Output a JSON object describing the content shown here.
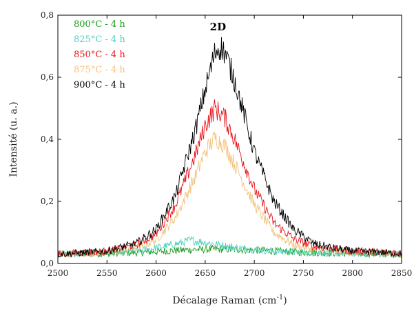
{
  "chart_data": {
    "type": "line",
    "title": "",
    "xlabel": "Décalage Raman (cm",
    "xlabel_sup": "-1",
    "xlabel_close": ")",
    "ylabel": "Intensité (u. a.)",
    "xlim": [
      2500,
      2850
    ],
    "ylim": [
      0,
      0.8
    ],
    "x_ticks": [
      2500,
      2550,
      2600,
      2650,
      2700,
      2750,
      2800,
      2850
    ],
    "y_ticks": [
      0.0,
      0.2,
      0.4,
      0.6,
      0.8
    ],
    "x_tick_labels": [
      "2500",
      "2550",
      "2600",
      "2650",
      "2700",
      "2750",
      "2800",
      "2850"
    ],
    "y_tick_labels": [
      "0,0",
      "0,2",
      "0,4",
      "0,6",
      "0,8"
    ],
    "legend_position": "top-left",
    "grid": false,
    "annotations": [
      {
        "text": "2D",
        "x": 2663,
        "y": 0.76
      }
    ],
    "series": [
      {
        "name": "800°C - 4 h",
        "color": "#1a9a1a",
        "x": [
          2500,
          2550,
          2600,
          2620,
          2640,
          2660,
          2680,
          2700,
          2750,
          2800,
          2850
        ],
        "y": [
          0.03,
          0.032,
          0.038,
          0.042,
          0.045,
          0.046,
          0.045,
          0.043,
          0.036,
          0.032,
          0.03
        ]
      },
      {
        "name": "825°C - 4 h",
        "color": "#4fd0c0",
        "x": [
          2500,
          2550,
          2580,
          2600,
          2620,
          2635,
          2650,
          2665,
          2680,
          2700,
          2720,
          2750,
          2800,
          2850
        ],
        "y": [
          0.03,
          0.033,
          0.04,
          0.05,
          0.062,
          0.075,
          0.068,
          0.06,
          0.052,
          0.045,
          0.04,
          0.035,
          0.032,
          0.03
        ]
      },
      {
        "name": "850°C - 4 h",
        "color": "#e8141c",
        "x": [
          2500,
          2550,
          2580,
          2600,
          2620,
          2640,
          2650,
          2660,
          2670,
          2680,
          2700,
          2720,
          2740,
          2760,
          2800,
          2850
        ],
        "y": [
          0.03,
          0.04,
          0.06,
          0.095,
          0.19,
          0.35,
          0.445,
          0.5,
          0.47,
          0.4,
          0.24,
          0.13,
          0.08,
          0.055,
          0.04,
          0.035
        ]
      },
      {
        "name": "875°C - 4 h",
        "color": "#f2c27c",
        "x": [
          2500,
          2550,
          2580,
          2600,
          2620,
          2640,
          2650,
          2660,
          2670,
          2680,
          2700,
          2720,
          2740,
          2760,
          2800,
          2850
        ],
        "y": [
          0.03,
          0.035,
          0.05,
          0.075,
          0.15,
          0.28,
          0.36,
          0.405,
          0.38,
          0.32,
          0.19,
          0.1,
          0.06,
          0.045,
          0.035,
          0.03
        ]
      },
      {
        "name": "900°C - 4 h",
        "color": "#000000",
        "x": [
          2500,
          2550,
          2580,
          2600,
          2620,
          2640,
          2650,
          2660,
          2665,
          2670,
          2680,
          2700,
          2720,
          2740,
          2760,
          2780,
          2800,
          2850
        ],
        "y": [
          0.03,
          0.04,
          0.065,
          0.11,
          0.22,
          0.43,
          0.56,
          0.68,
          0.7,
          0.68,
          0.59,
          0.36,
          0.2,
          0.11,
          0.065,
          0.05,
          0.04,
          0.032
        ]
      }
    ]
  }
}
